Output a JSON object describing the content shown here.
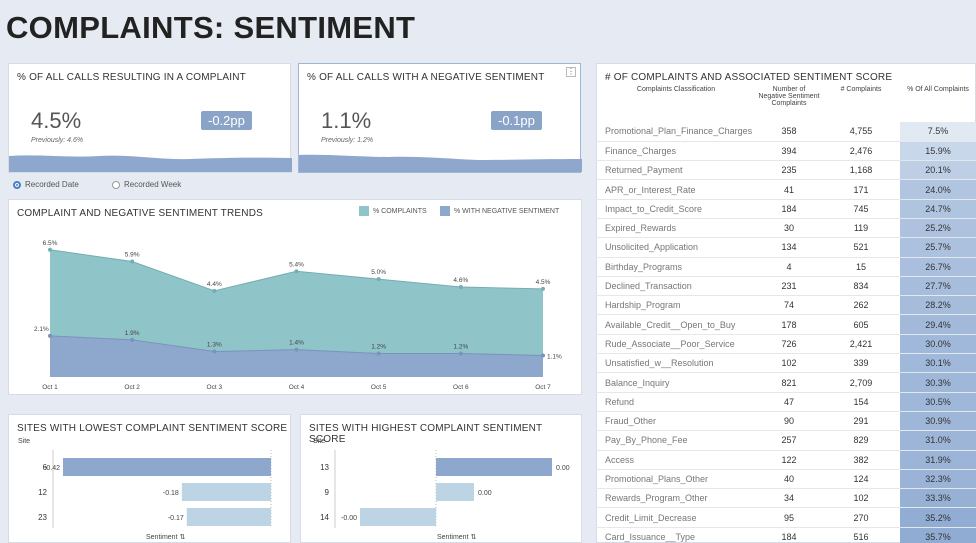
{
  "page": {
    "title": "COMPLAINTS: SENTIMENT"
  },
  "kpi1": {
    "title": "% OF ALL CALLS RESULTING IN A COMPLAINT",
    "value": "4.5%",
    "previous": "Previously: 4.6%",
    "delta": "-0.2pp"
  },
  "kpi2": {
    "title": "% OF ALL CALLS WITH A NEGATIVE SENTIMENT",
    "value": "1.1%",
    "previous": "Previously: 1.2%",
    "delta": "-0.1pp"
  },
  "toggle": {
    "recorded_date": "Recorded Date",
    "recorded_week": "Recorded Week"
  },
  "trend": {
    "title": "COMPLAINT AND NEGATIVE SENTIMENT TRENDS",
    "legend_complaints": "% COMPLAINTS",
    "legend_negative": "% WITH NEGATIVE SENTIMENT",
    "color_complaints": "#8fc4c9",
    "color_negative": "#8ea7cc"
  },
  "chart_data": [
    {
      "type": "area",
      "x": [
        "Oct 1",
        "Oct 2",
        "Oct 3",
        "Oct 4",
        "Oct 5",
        "Oct 6",
        "Oct 7"
      ],
      "series": [
        {
          "name": "% COMPLAINTS",
          "values": [
            6.5,
            5.9,
            4.4,
            5.4,
            5.0,
            4.6,
            4.5
          ],
          "labels": [
            "6.5%",
            "5.9%",
            "4.4%",
            "5.4%",
            "5.0%",
            "4.6%",
            "4.5%"
          ]
        },
        {
          "name": "% WITH NEGATIVE SENTIMENT",
          "values": [
            2.1,
            1.9,
            1.3,
            1.4,
            1.2,
            1.2,
            1.1
          ],
          "labels": [
            "2.1%",
            "1.9%",
            "1.3%",
            "1.4%",
            "1.2%",
            "1.2%",
            "1.1%"
          ]
        }
      ],
      "ylim": [
        0,
        7
      ],
      "title": "COMPLAINT AND NEGATIVE SENTIMENT TRENDS"
    },
    {
      "type": "bar",
      "title": "SITES WITH LOWEST COMPLAINT SENTIMENT SCORE",
      "ylabel": "Site",
      "xlabel": "Sentiment",
      "categories": [
        "6",
        "12",
        "23"
      ],
      "values": [
        -0.42,
        -0.18,
        -0.17
      ],
      "labels": [
        "-0.42",
        "-0.18",
        "-0.17"
      ]
    },
    {
      "type": "bar",
      "title": "SITES WITH HIGHEST COMPLAINT SENTIMENT SCORE",
      "ylabel": "Site",
      "xlabel": "Sentiment",
      "categories": [
        "13",
        "9",
        "14"
      ],
      "values": [
        0.0,
        0.0,
        -0.0
      ],
      "labels": [
        "0.00",
        "0.00",
        "-0.00"
      ]
    }
  ],
  "table": {
    "title": "# OF COMPLAINTS AND ASSOCIATED SENTIMENT SCORE",
    "headers": [
      "Complaints Classification",
      "Number of Negative Sentiment Complaints",
      "# Complaints",
      "% Of All Complaints"
    ],
    "rows": [
      [
        "Promotional_Plan_Finance_Charges",
        "358",
        "4,755",
        "7.5%"
      ],
      [
        "Finance_Charges",
        "394",
        "2,476",
        "15.9%"
      ],
      [
        "Returned_Payment",
        "235",
        "1,168",
        "20.1%"
      ],
      [
        "APR_or_Interest_Rate",
        "41",
        "171",
        "24.0%"
      ],
      [
        "Impact_to_Credit_Score",
        "184",
        "745",
        "24.7%"
      ],
      [
        "Expired_Rewards",
        "30",
        "119",
        "25.2%"
      ],
      [
        "Unsolicited_Application",
        "134",
        "521",
        "25.7%"
      ],
      [
        "Birthday_Programs",
        "4",
        "15",
        "26.7%"
      ],
      [
        "Declined_Transaction",
        "231",
        "834",
        "27.7%"
      ],
      [
        "Hardship_Program",
        "74",
        "262",
        "28.2%"
      ],
      [
        "Available_Credit__Open_to_Buy",
        "178",
        "605",
        "29.4%"
      ],
      [
        "Rude_Associate__Poor_Service",
        "726",
        "2,421",
        "30.0%"
      ],
      [
        "Unsatisfied_w__Resolution",
        "102",
        "339",
        "30.1%"
      ],
      [
        "Balance_Inquiry",
        "821",
        "2,709",
        "30.3%"
      ],
      [
        "Refund",
        "47",
        "154",
        "30.5%"
      ],
      [
        "Fraud_Other",
        "90",
        "291",
        "30.9%"
      ],
      [
        "Pay_By_Phone_Fee",
        "257",
        "829",
        "31.0%"
      ],
      [
        "Access",
        "122",
        "382",
        "31.9%"
      ],
      [
        "Promotional_Plans_Other",
        "40",
        "124",
        "32.3%"
      ],
      [
        "Rewards_Program_Other",
        "34",
        "102",
        "33.3%"
      ],
      [
        "Credit_Limit_Decrease",
        "95",
        "270",
        "35.2%"
      ],
      [
        "Card_Issuance__Type",
        "184",
        "516",
        "35.7%"
      ]
    ]
  }
}
